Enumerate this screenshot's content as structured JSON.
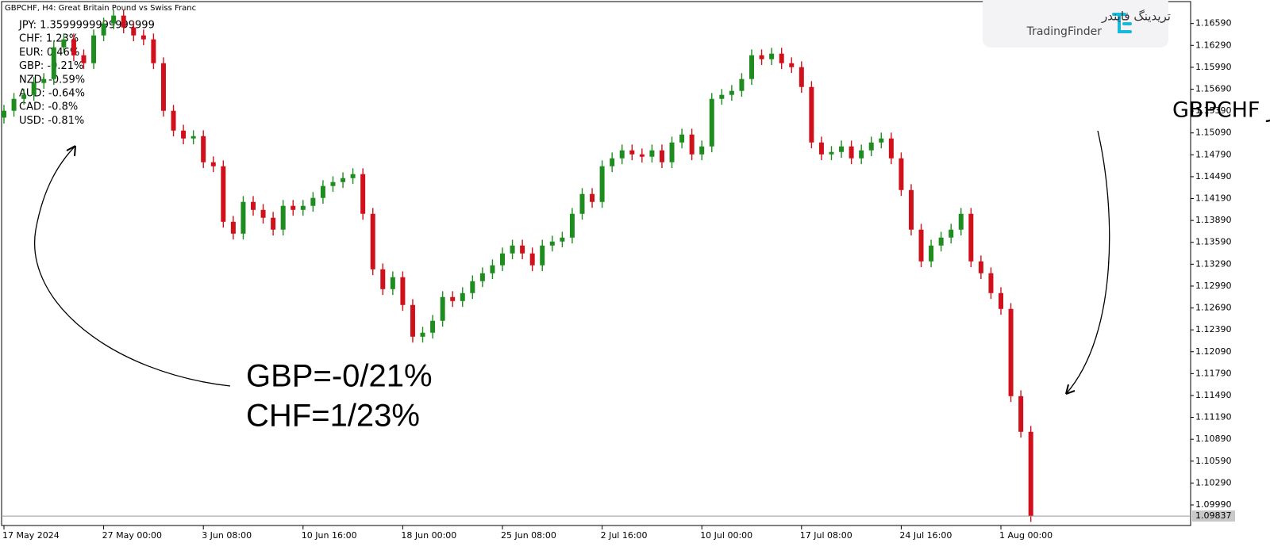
{
  "chart_data": {
    "type": "candlestick",
    "title": "GBPCHF, H4:  Great Britain Pound vs Swiss Franc",
    "categories": [
      "17 May 2024",
      null,
      null,
      null,
      null,
      null,
      null,
      null,
      null,
      null,
      "27 May 00:00",
      null,
      null,
      null,
      null,
      null,
      null,
      null,
      null,
      null,
      "3 Jun 08:00",
      null,
      null,
      null,
      null,
      null,
      null,
      null,
      null,
      null,
      "10 Jun 16:00",
      null,
      null,
      null,
      null,
      null,
      null,
      null,
      null,
      null,
      "18 Jun 00:00",
      null,
      null,
      null,
      null,
      null,
      null,
      null,
      null,
      null,
      "25 Jun 08:00",
      null,
      null,
      null,
      null,
      null,
      null,
      null,
      null,
      null,
      "2 Jul 16:00",
      null,
      null,
      null,
      null,
      null,
      null,
      null,
      null,
      null,
      "10 Jul 00:00",
      null,
      null,
      null,
      null,
      null,
      null,
      null,
      null,
      null,
      "17 Jul 08:00",
      null,
      null,
      null,
      null,
      null,
      null,
      null,
      null,
      null,
      "24 Jul 16:00",
      null,
      null,
      null,
      null,
      null,
      null,
      null,
      null,
      null,
      "1 Aug 00:00",
      null,
      null,
      null
    ],
    "open": [
      1.153,
      1.15394,
      1.15557,
      1.15612,
      1.15775,
      1.15829,
      1.16264,
      1.16373,
      1.16155,
      1.16046,
      1.16427,
      1.1659,
      1.16699,
      1.16536,
      1.16427,
      1.16373,
      1.16046,
      1.15394,
      1.15122,
      1.15014,
      1.15046,
      1.14688,
      1.14633,
      1.13872,
      1.13709,
      1.14144,
      1.14035,
      1.13927,
      1.13764,
      1.1409,
      1.14035,
      1.1409,
      1.14199,
      1.14362,
      1.14416,
      1.1447,
      1.14525,
      1.13981,
      1.1322,
      1.12948,
      1.13112,
      1.12731,
      1.12296,
      1.12351,
      1.12514,
      1.1284,
      1.12785,
      1.12894,
      1.13057,
      1.13166,
      1.13275,
      1.13438,
      1.13546,
      1.13438,
      1.13275,
      1.13546,
      1.13601,
      1.13655,
      1.13981,
      1.14253,
      1.14144,
      1.14633,
      1.14742,
      1.14851,
      1.14796,
      1.14764,
      1.14851,
      1.14688,
      1.14959,
      1.15068,
      1.14796,
      1.14905,
      1.15557,
      1.15612,
      1.15666,
      1.15829,
      1.16155,
      1.16101,
      1.16177,
      1.16046,
      1.15992,
      1.1572,
      1.14959,
      1.14796,
      1.14829,
      1.14905,
      1.14742,
      1.14851,
      1.14959,
      1.15014,
      1.14742,
      1.14307,
      1.13764,
      1.13329,
      1.13546,
      1.13655,
      1.13764,
      1.13981,
      1.13329,
      1.13166,
      1.12894,
      1.12677,
      1.11481,
      1.10992
    ],
    "high": [
      1.15474,
      1.15637,
      1.15692,
      1.15855,
      1.15909,
      1.16344,
      1.16453,
      1.16453,
      1.16235,
      1.16507,
      1.1667,
      1.16779,
      1.16779,
      1.16616,
      1.16507,
      1.16453,
      1.16126,
      1.15474,
      1.15202,
      1.15126,
      1.15126,
      1.14768,
      1.14713,
      1.13952,
      1.14224,
      1.14224,
      1.14115,
      1.14007,
      1.1417,
      1.1417,
      1.1417,
      1.14279,
      1.14442,
      1.14496,
      1.1455,
      1.14605,
      1.14605,
      1.14061,
      1.133,
      1.13192,
      1.13192,
      1.12811,
      1.12431,
      1.12594,
      1.1292,
      1.1292,
      1.12974,
      1.13137,
      1.13246,
      1.13355,
      1.13518,
      1.13626,
      1.13626,
      1.13518,
      1.13626,
      1.13681,
      1.13735,
      1.14061,
      1.14333,
      1.14333,
      1.14713,
      1.14822,
      1.14931,
      1.14931,
      1.14876,
      1.14931,
      1.14931,
      1.15039,
      1.15148,
      1.15148,
      1.14985,
      1.15637,
      1.15692,
      1.15746,
      1.15909,
      1.16235,
      1.16235,
      1.16257,
      1.16257,
      1.16126,
      1.16072,
      1.158,
      1.15039,
      1.14909,
      1.14985,
      1.14985,
      1.14931,
      1.15039,
      1.15094,
      1.15094,
      1.14822,
      1.14387,
      1.13844,
      1.13626,
      1.13735,
      1.13844,
      1.14061,
      1.14061,
      1.13409,
      1.13246,
      1.12974,
      1.12757,
      1.11561,
      1.11072
    ],
    "low": [
      1.1522,
      1.15314,
      1.15477,
      1.15532,
      1.15695,
      1.15749,
      1.16184,
      1.16075,
      1.15966,
      1.15966,
      1.16347,
      1.1651,
      1.16456,
      1.16347,
      1.16293,
      1.15966,
      1.15314,
      1.15042,
      1.14934,
      1.14934,
      1.14608,
      1.14553,
      1.13792,
      1.13629,
      1.13629,
      1.13955,
      1.13847,
      1.13684,
      1.13684,
      1.13955,
      1.13955,
      1.1401,
      1.14119,
      1.14282,
      1.14336,
      1.1439,
      1.13901,
      1.1314,
      1.12868,
      1.12868,
      1.12651,
      1.12216,
      1.12216,
      1.12271,
      1.12434,
      1.12705,
      1.12705,
      1.12814,
      1.12977,
      1.13086,
      1.13195,
      1.13358,
      1.13358,
      1.13195,
      1.13195,
      1.13466,
      1.13521,
      1.13575,
      1.13901,
      1.14064,
      1.14064,
      1.14553,
      1.14662,
      1.14716,
      1.14684,
      1.14684,
      1.14608,
      1.14608,
      1.14879,
      1.14716,
      1.14716,
      1.14825,
      1.15477,
      1.15532,
      1.15586,
      1.15749,
      1.16021,
      1.16021,
      1.15966,
      1.15912,
      1.1564,
      1.14879,
      1.14716,
      1.14716,
      1.14749,
      1.14662,
      1.14662,
      1.14771,
      1.14879,
      1.14662,
      1.14227,
      1.13684,
      1.13249,
      1.13249,
      1.13466,
      1.13575,
      1.13684,
      1.13249,
      1.13086,
      1.12814,
      1.12597,
      1.11401,
      1.10912,
      1.09757
    ],
    "close": [
      1.15394,
      1.15557,
      1.15612,
      1.15775,
      1.15829,
      1.16264,
      1.16373,
      1.16155,
      1.16046,
      1.16427,
      1.1659,
      1.16699,
      1.16536,
      1.16427,
      1.16373,
      1.16046,
      1.15394,
      1.15122,
      1.15014,
      1.15046,
      1.14688,
      1.14633,
      1.13872,
      1.13709,
      1.14144,
      1.14035,
      1.13927,
      1.13764,
      1.1409,
      1.14035,
      1.1409,
      1.14199,
      1.14362,
      1.14416,
      1.1447,
      1.14525,
      1.13981,
      1.1322,
      1.12948,
      1.13112,
      1.12731,
      1.12296,
      1.12351,
      1.12514,
      1.1284,
      1.12785,
      1.12894,
      1.13057,
      1.13166,
      1.13275,
      1.13438,
      1.13546,
      1.13438,
      1.13275,
      1.13546,
      1.13601,
      1.13655,
      1.13981,
      1.14253,
      1.14144,
      1.14633,
      1.14742,
      1.14851,
      1.14796,
      1.14764,
      1.14851,
      1.14688,
      1.14959,
      1.15068,
      1.14796,
      1.14905,
      1.15557,
      1.15612,
      1.15666,
      1.15829,
      1.16155,
      1.16101,
      1.16177,
      1.16046,
      1.15992,
      1.1572,
      1.14959,
      1.14796,
      1.14829,
      1.14905,
      1.14742,
      1.14851,
      1.14959,
      1.15014,
      1.14742,
      1.14307,
      1.13764,
      1.13329,
      1.13546,
      1.13655,
      1.13764,
      1.13981,
      1.13329,
      1.13166,
      1.12894,
      1.12677,
      1.11481,
      1.10992,
      1.09837
    ],
    "up_color": "#1e8c1e",
    "down_color": "#d0101a",
    "ylim": [
      1.0974,
      1.1688
    ],
    "yticks": [
      {
        "value": 1.1659,
        "label": "1.16590"
      },
      {
        "value": 1.1629,
        "label": "1.16290"
      },
      {
        "value": 1.1599,
        "label": "1.15990"
      },
      {
        "value": 1.1569,
        "label": "1.15690"
      },
      {
        "value": 1.1539,
        "label": "1.15390"
      },
      {
        "value": 1.1509,
        "label": "1.15090"
      },
      {
        "value": 1.1479,
        "label": "1.14790"
      },
      {
        "value": 1.1449,
        "label": "1.14490"
      },
      {
        "value": 1.1419,
        "label": "1.14190"
      },
      {
        "value": 1.1389,
        "label": "1.13890"
      },
      {
        "value": 1.1359,
        "label": "1.13590"
      },
      {
        "value": 1.1329,
        "label": "1.13290"
      },
      {
        "value": 1.1299,
        "label": "1.12990"
      },
      {
        "value": 1.1269,
        "label": "1.12690"
      },
      {
        "value": 1.1239,
        "label": "1.12390"
      },
      {
        "value": 1.1209,
        "label": "1.12090"
      },
      {
        "value": 1.1179,
        "label": "1.11790"
      },
      {
        "value": 1.1149,
        "label": "1.11490"
      },
      {
        "value": 1.1119,
        "label": "1.11190"
      },
      {
        "value": 1.1089,
        "label": "1.10890"
      },
      {
        "value": 1.1059,
        "label": "1.10590"
      },
      {
        "value": 1.1029,
        "label": "1.10290"
      },
      {
        "value": 1.0999,
        "label": "1.09990"
      }
    ],
    "last_price": 1.09837,
    "currency_strength": [
      "JPY: 1.3599999999999999",
      "CHF: 1.23%",
      "EUR: 0.46%",
      "GBP: -0.21%",
      "NZD: -0.59%",
      "AUD: -0.64%",
      "CAD: -0.8%",
      "USD: -0.81%"
    ],
    "annotations": {
      "left": [
        "GBP=-0/21%",
        "CHF=1/23%"
      ],
      "right": "روند نزولی در جفت ارز GBPCHF"
    },
    "logo": {
      "persian": "تریدینگ فایندر",
      "latin": "TradingFinder"
    }
  }
}
